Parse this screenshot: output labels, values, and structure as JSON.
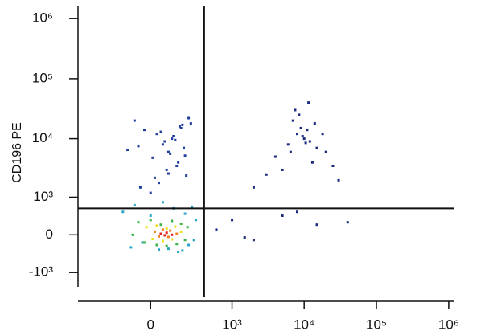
{
  "chart_data": {
    "type": "scatter",
    "y_label": "CD196 PE",
    "xscale": "biexponential",
    "yscale": "biexponential",
    "xlim": [
      -750,
      1200000
    ],
    "ylim": [
      -1800,
      1500000
    ],
    "xticks": [
      0,
      {
        "value": 1000,
        "label": "10³"
      },
      {
        "value": 10000,
        "label": "10⁴"
      },
      {
        "value": 100000,
        "label": "10⁵"
      },
      {
        "value": 1000000,
        "label": "10⁶"
      }
    ],
    "yticks": [
      {
        "value": -1000,
        "label": "-10³"
      },
      0,
      {
        "value": 1000,
        "label": "10³"
      },
      {
        "value": 10000,
        "label": "10⁴"
      },
      {
        "value": 100000,
        "label": "10⁵"
      },
      {
        "value": 1000000,
        "label": "10⁶"
      }
    ],
    "gates": {
      "x": 400,
      "y": 600
    },
    "series": [
      {
        "color": "#1f3f9f",
        "x": [
          -50,
          20,
          80,
          150,
          200,
          -120,
          60,
          110,
          30,
          170,
          250,
          -80,
          90,
          140,
          10,
          190,
          70,
          120,
          -30,
          160,
          40,
          210,
          100,
          -60,
          130,
          50,
          180,
          230,
          0,
          90
        ],
        "y": [
          1500,
          2200,
          3000,
          4000,
          5200,
          6500,
          8000,
          10000,
          12000,
          15000,
          18000,
          20000,
          2600,
          3500,
          4800,
          7000,
          9000,
          11000,
          14000,
          16000,
          1800,
          2400,
          5600,
          7500,
          9500,
          13000,
          17000,
          22000,
          1200,
          6000
        ]
      },
      {
        "color": "#1a2a80",
        "x": [
          4000,
          6000,
          8000,
          10000,
          12000,
          15000,
          9000,
          7000,
          11000,
          5000,
          13000,
          20000,
          3000,
          25000,
          8500,
          9500,
          6500,
          14000,
          10500,
          7500,
          2000,
          30000,
          18000,
          11500,
          1000,
          2000,
          5000,
          8000,
          15000,
          40000,
          1500,
          600
        ],
        "y": [
          5000,
          8000,
          12000,
          10000,
          9000,
          7000,
          15000,
          20000,
          14000,
          3000,
          4000,
          6000,
          2500,
          3500,
          25000,
          11000,
          6000,
          18000,
          8500,
          30000,
          1500,
          2000,
          12000,
          40000,
          300,
          -100,
          400,
          500,
          200,
          250,
          -50,
          100
        ]
      },
      {
        "color": "#27a6c8",
        "x": [
          -150,
          -80,
          0,
          60,
          120,
          200,
          260,
          300,
          -100,
          40,
          150,
          230,
          -40,
          90,
          180,
          280
        ],
        "y": [
          500,
          700,
          400,
          800,
          600,
          450,
          650,
          300,
          -250,
          -300,
          -350,
          -200,
          -150,
          -280,
          -320,
          -100
        ]
      },
      {
        "color": "#3cb44b",
        "x": [
          -60,
          0,
          50,
          110,
          170,
          220,
          -30,
          30,
          140,
          200,
          80,
          -90
        ],
        "y": [
          250,
          300,
          200,
          280,
          220,
          150,
          -150,
          -200,
          -180,
          -100,
          -220,
          0
        ]
      },
      {
        "color": "#f0e020",
        "x": [
          -20,
          30,
          80,
          130,
          170,
          10,
          60,
          110
        ],
        "y": [
          150,
          180,
          120,
          160,
          60,
          -80,
          -120,
          -90
        ]
      },
      {
        "color": "#f08020",
        "x": [
          20,
          60,
          100,
          140,
          40,
          90
        ],
        "y": [
          60,
          100,
          80,
          20,
          -30,
          -40
        ]
      },
      {
        "color": "#e02020",
        "x": [
          50,
          80,
          110,
          70
        ],
        "y": [
          20,
          40,
          0,
          -10
        ]
      }
    ]
  }
}
